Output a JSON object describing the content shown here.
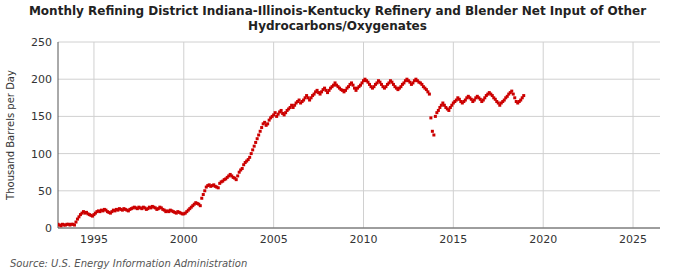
{
  "chart_data": {
    "type": "line",
    "title": "Monthly Refining District Indiana-Illinois-Kentucky Refinery and Blender Net Input of Other\nHydrocarbons/Oxygenates",
    "y_label": "Thousand Barrels per Day",
    "annotations": [
      "Source: U.S. Energy Information Administration"
    ],
    "color": "#cc0000",
    "marker": "square",
    "line_style": "none",
    "grid": true,
    "xlim": [
      1993.0,
      2026.5
    ],
    "ylim": [
      0,
      250
    ],
    "xticks": [
      1995,
      2000,
      2005,
      2010,
      2015,
      2020,
      2025
    ],
    "yticks": [
      0,
      50,
      100,
      150,
      200,
      250
    ],
    "x": [
      1993,
      1993.0833333333333,
      1993.1666666666667,
      1993.25,
      1993.3333333333333,
      1993.4166666666667,
      1993.5,
      1993.5833333333333,
      1993.6666666666667,
      1993.75,
      1993.8333333333333,
      1993.9166666666667,
      1994,
      1994.0833333333333,
      1994.1666666666667,
      1994.25,
      1994.3333333333333,
      1994.4166666666667,
      1994.5,
      1994.5833333333333,
      1994.6666666666667,
      1994.75,
      1994.8333333333333,
      1994.9166666666667,
      1995,
      1995.0833333333333,
      1995.1666666666667,
      1995.25,
      1995.3333333333333,
      1995.4166666666667,
      1995.5,
      1995.5833333333333,
      1995.6666666666667,
      1995.75,
      1995.8333333333333,
      1995.9166666666667,
      1996,
      1996.0833333333333,
      1996.1666666666667,
      1996.25,
      1996.3333333333333,
      1996.4166666666667,
      1996.5,
      1996.5833333333333,
      1996.6666666666667,
      1996.75,
      1996.8333333333333,
      1996.9166666666667,
      1997,
      1997.0833333333333,
      1997.1666666666667,
      1997.25,
      1997.3333333333333,
      1997.4166666666667,
      1997.5,
      1997.5833333333333,
      1997.6666666666667,
      1997.75,
      1997.8333333333333,
      1997.9166666666667,
      1998,
      1998.0833333333333,
      1998.1666666666667,
      1998.25,
      1998.3333333333333,
      1998.4166666666667,
      1998.5,
      1998.5833333333333,
      1998.6666666666667,
      1998.75,
      1998.8333333333333,
      1998.9166666666667,
      1999,
      1999.0833333333333,
      1999.1666666666667,
      1999.25,
      1999.3333333333333,
      1999.4166666666667,
      1999.5,
      1999.5833333333333,
      1999.6666666666667,
      1999.75,
      1999.8333333333333,
      1999.9166666666667,
      2000,
      2000.0833333333333,
      2000.1666666666667,
      2000.25,
      2000.3333333333333,
      2000.4166666666667,
      2000.5,
      2000.5833333333333,
      2000.6666666666667,
      2000.75,
      2000.8333333333333,
      2000.9166666666667,
      2001,
      2001.0833333333333,
      2001.1666666666667,
      2001.25,
      2001.3333333333333,
      2001.4166666666667,
      2001.5,
      2001.5833333333333,
      2001.6666666666667,
      2001.75,
      2001.8333333333333,
      2001.9166666666667,
      2002,
      2002.0833333333333,
      2002.1666666666667,
      2002.25,
      2002.3333333333333,
      2002.4166666666667,
      2002.5,
      2002.5833333333333,
      2002.6666666666667,
      2002.75,
      2002.8333333333333,
      2002.9166666666667,
      2003,
      2003.0833333333333,
      2003.1666666666667,
      2003.25,
      2003.3333333333333,
      2003.4166666666667,
      2003.5,
      2003.5833333333333,
      2003.6666666666667,
      2003.75,
      2003.8333333333333,
      2003.9166666666667,
      2004,
      2004.0833333333333,
      2004.1666666666667,
      2004.25,
      2004.3333333333333,
      2004.4166666666667,
      2004.5,
      2004.5833333333333,
      2004.6666666666667,
      2004.75,
      2004.8333333333333,
      2004.9166666666667,
      2005,
      2005.0833333333333,
      2005.1666666666667,
      2005.25,
      2005.3333333333333,
      2005.4166666666667,
      2005.5,
      2005.5833333333333,
      2005.6666666666667,
      2005.75,
      2005.8333333333333,
      2005.9166666666667,
      2006,
      2006.0833333333333,
      2006.1666666666667,
      2006.25,
      2006.3333333333333,
      2006.4166666666667,
      2006.5,
      2006.5833333333333,
      2006.6666666666667,
      2006.75,
      2006.8333333333333,
      2006.9166666666667,
      2007,
      2007.0833333333333,
      2007.1666666666667,
      2007.25,
      2007.3333333333333,
      2007.4166666666667,
      2007.5,
      2007.5833333333333,
      2007.6666666666667,
      2007.75,
      2007.8333333333333,
      2007.9166666666667,
      2008,
      2008.0833333333333,
      2008.1666666666667,
      2008.25,
      2008.3333333333333,
      2008.4166666666667,
      2008.5,
      2008.5833333333333,
      2008.6666666666667,
      2008.75,
      2008.8333333333333,
      2008.9166666666667,
      2009,
      2009.0833333333333,
      2009.1666666666667,
      2009.25,
      2009.3333333333333,
      2009.4166666666667,
      2009.5,
      2009.5833333333333,
      2009.6666666666667,
      2009.75,
      2009.8333333333333,
      2009.9166666666667,
      2010,
      2010.0833333333333,
      2010.1666666666667,
      2010.25,
      2010.3333333333333,
      2010.4166666666667,
      2010.5,
      2010.5833333333333,
      2010.6666666666667,
      2010.75,
      2010.8333333333333,
      2010.9166666666667,
      2011,
      2011.0833333333333,
      2011.1666666666667,
      2011.25,
      2011.3333333333333,
      2011.4166666666667,
      2011.5,
      2011.5833333333333,
      2011.6666666666667,
      2011.75,
      2011.8333333333333,
      2011.9166666666667,
      2012,
      2012.0833333333333,
      2012.1666666666667,
      2012.25,
      2012.3333333333333,
      2012.4166666666667,
      2012.5,
      2012.5833333333333,
      2012.6666666666667,
      2012.75,
      2012.8333333333333,
      2012.9166666666667,
      2013,
      2013.0833333333333,
      2013.1666666666667,
      2013.25,
      2013.3333333333333,
      2013.4166666666667,
      2013.5,
      2013.5833333333333,
      2013.6666666666667,
      2013.75,
      2013.8333333333333,
      2013.9166666666667,
      2014,
      2014.0833333333333,
      2014.1666666666667,
      2014.25,
      2014.3333333333333,
      2014.4166666666667,
      2014.5,
      2014.5833333333333,
      2014.6666666666667,
      2014.75,
      2014.8333333333333,
      2014.9166666666667,
      2015,
      2015.0833333333333,
      2015.1666666666667,
      2015.25,
      2015.3333333333333,
      2015.4166666666667,
      2015.5,
      2015.5833333333333,
      2015.6666666666667,
      2015.75,
      2015.8333333333333,
      2015.9166666666667,
      2016,
      2016.0833333333333,
      2016.1666666666667,
      2016.25,
      2016.3333333333333,
      2016.4166666666667,
      2016.5,
      2016.5833333333333,
      2016.6666666666667,
      2016.75,
      2016.8333333333333,
      2016.9166666666667,
      2017,
      2017.0833333333333,
      2017.1666666666667,
      2017.25,
      2017.3333333333333,
      2017.4166666666667,
      2017.5,
      2017.5833333333333,
      2017.6666666666667,
      2017.75,
      2017.8333333333333,
      2017.9166666666667,
      2018,
      2018.0833333333333,
      2018.1666666666667,
      2018.25,
      2018.3333333333333,
      2018.4166666666667,
      2018.5,
      2018.5833333333333,
      2018.6666666666667,
      2018.75,
      2018.8333333333333,
      2018.9166666666667
    ],
    "values": [
      5,
      4,
      3,
      5,
      4,
      4,
      5,
      5,
      4,
      5,
      5,
      4,
      8,
      12,
      15,
      18,
      20,
      22,
      20,
      21,
      19,
      18,
      17,
      16,
      18,
      20,
      22,
      23,
      22,
      24,
      23,
      25,
      24,
      22,
      21,
      20,
      22,
      24,
      23,
      25,
      24,
      26,
      25,
      24,
      26,
      25,
      24,
      23,
      25,
      26,
      27,
      28,
      27,
      26,
      28,
      27,
      26,
      28,
      27,
      25,
      26,
      28,
      27,
      29,
      28,
      27,
      25,
      26,
      28,
      27,
      25,
      24,
      22,
      23,
      22,
      24,
      23,
      22,
      21,
      20,
      22,
      21,
      20,
      19,
      19,
      20,
      22,
      24,
      26,
      28,
      30,
      32,
      34,
      33,
      32,
      30,
      40,
      45,
      50,
      55,
      57,
      58,
      56,
      57,
      58,
      56,
      55,
      54,
      60,
      62,
      63,
      65,
      66,
      68,
      70,
      72,
      70,
      68,
      67,
      65,
      70,
      75,
      78,
      80,
      85,
      88,
      90,
      92,
      95,
      100,
      105,
      110,
      115,
      120,
      125,
      130,
      135,
      140,
      142,
      138,
      140,
      145,
      148,
      150,
      152,
      155,
      150,
      153,
      156,
      158,
      154,
      152,
      155,
      158,
      160,
      162,
      165,
      162,
      165,
      168,
      170,
      172,
      168,
      170,
      172,
      175,
      178,
      175,
      172,
      175,
      178,
      180,
      183,
      185,
      182,
      180,
      183,
      186,
      188,
      185,
      182,
      185,
      188,
      190,
      192,
      195,
      192,
      190,
      188,
      186,
      185,
      183,
      185,
      188,
      190,
      193,
      195,
      192,
      188,
      185,
      188,
      190,
      192,
      195,
      198,
      200,
      198,
      196,
      193,
      190,
      188,
      190,
      193,
      195,
      198,
      196,
      193,
      190,
      188,
      190,
      193,
      195,
      198,
      196,
      193,
      190,
      188,
      186,
      188,
      190,
      193,
      195,
      198,
      200,
      198,
      196,
      193,
      195,
      198,
      200,
      198,
      196,
      195,
      193,
      190,
      188,
      186,
      183,
      180,
      148,
      130,
      125,
      150,
      155,
      158,
      162,
      165,
      168,
      165,
      162,
      160,
      158,
      162,
      165,
      168,
      170,
      172,
      175,
      173,
      170,
      168,
      170,
      172,
      175,
      177,
      175,
      173,
      170,
      172,
      175,
      177,
      175,
      173,
      170,
      172,
      175,
      178,
      180,
      182,
      180,
      178,
      175,
      173,
      170,
      168,
      165,
      168,
      170,
      172,
      175,
      177,
      180,
      182,
      184,
      180,
      175,
      170,
      168,
      170,
      172,
      175,
      178
    ]
  }
}
